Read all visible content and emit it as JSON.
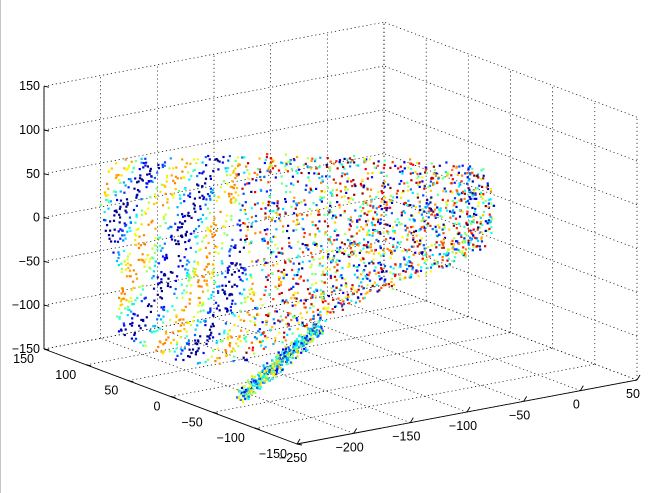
{
  "chart_data": {
    "type": "scatter",
    "dimensions": 3,
    "title": "",
    "xlabel": "",
    "ylabel": "",
    "zlabel": "",
    "grid": true,
    "colormap": "jet",
    "xlim": [
      -250,
      50
    ],
    "ylim": [
      -150,
      150
    ],
    "zlim": [
      -150,
      150
    ],
    "x_ticks": [
      "−250",
      "−200",
      "−150",
      "−100",
      "−50",
      "0",
      "50"
    ],
    "y_ticks": [
      "−150",
      "−100",
      "−50",
      "0",
      "50",
      "100",
      "150"
    ],
    "z_ticks": [
      "−150",
      "−100",
      "−50",
      "0",
      "50",
      "100",
      "150"
    ],
    "point_cloud": {
      "description_values": "dense surface-like point cloud",
      "x_range": [
        -230,
        40
      ],
      "y_range": [
        -140,
        120
      ],
      "z_range": [
        -130,
        70
      ]
    }
  }
}
